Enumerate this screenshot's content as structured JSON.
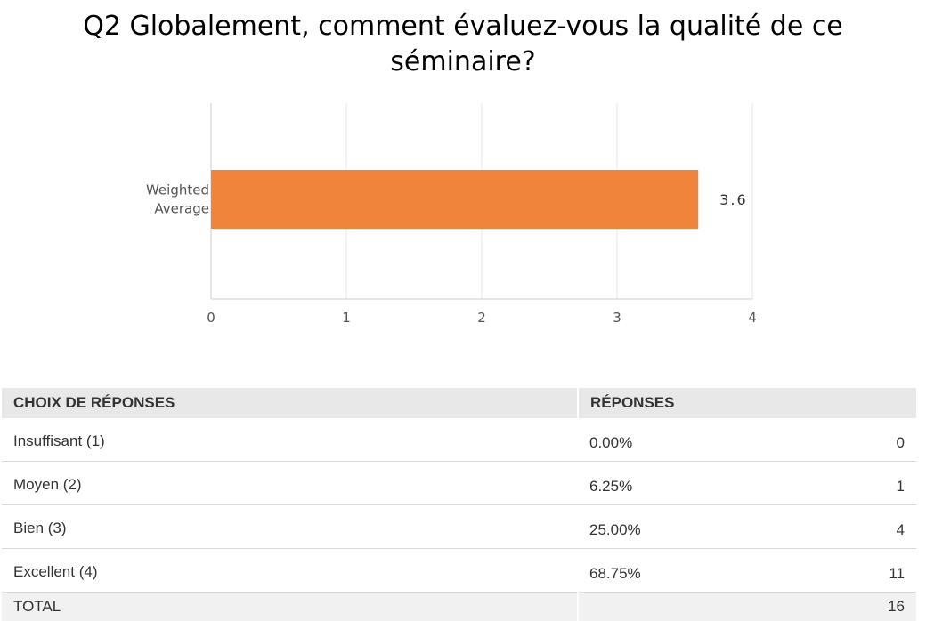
{
  "question": {
    "line1": "Q2 Globalement, comment évaluez-vous la qualité de ce",
    "line2": "séminaire?"
  },
  "chart_data": {
    "type": "bar",
    "orientation": "horizontal",
    "categories": [
      "Weighted Average"
    ],
    "category_label_lines": [
      "Weighted",
      "Average"
    ],
    "values": [
      3.6
    ],
    "value_labels": [
      "3.6"
    ],
    "xlim": [
      0,
      4
    ],
    "xticks": [
      "0",
      "1",
      "2",
      "3",
      "4"
    ],
    "grid": true,
    "bar_color": "#f0843a",
    "title": "",
    "xlabel": "",
    "ylabel": ""
  },
  "table": {
    "headers": [
      "CHOIX DE RÉPONSES",
      "RÉPONSES"
    ],
    "rows": [
      {
        "choice": "Insuffisant (1)",
        "percent": "0.00%",
        "count": "0"
      },
      {
        "choice": "Moyen (2)",
        "percent": "6.25%",
        "count": "1"
      },
      {
        "choice": "Bien (3)",
        "percent": "25.00%",
        "count": "4"
      },
      {
        "choice": "Excellent (4)",
        "percent": "68.75%",
        "count": "11"
      }
    ],
    "total_label": "TOTAL",
    "total_count": "16"
  }
}
